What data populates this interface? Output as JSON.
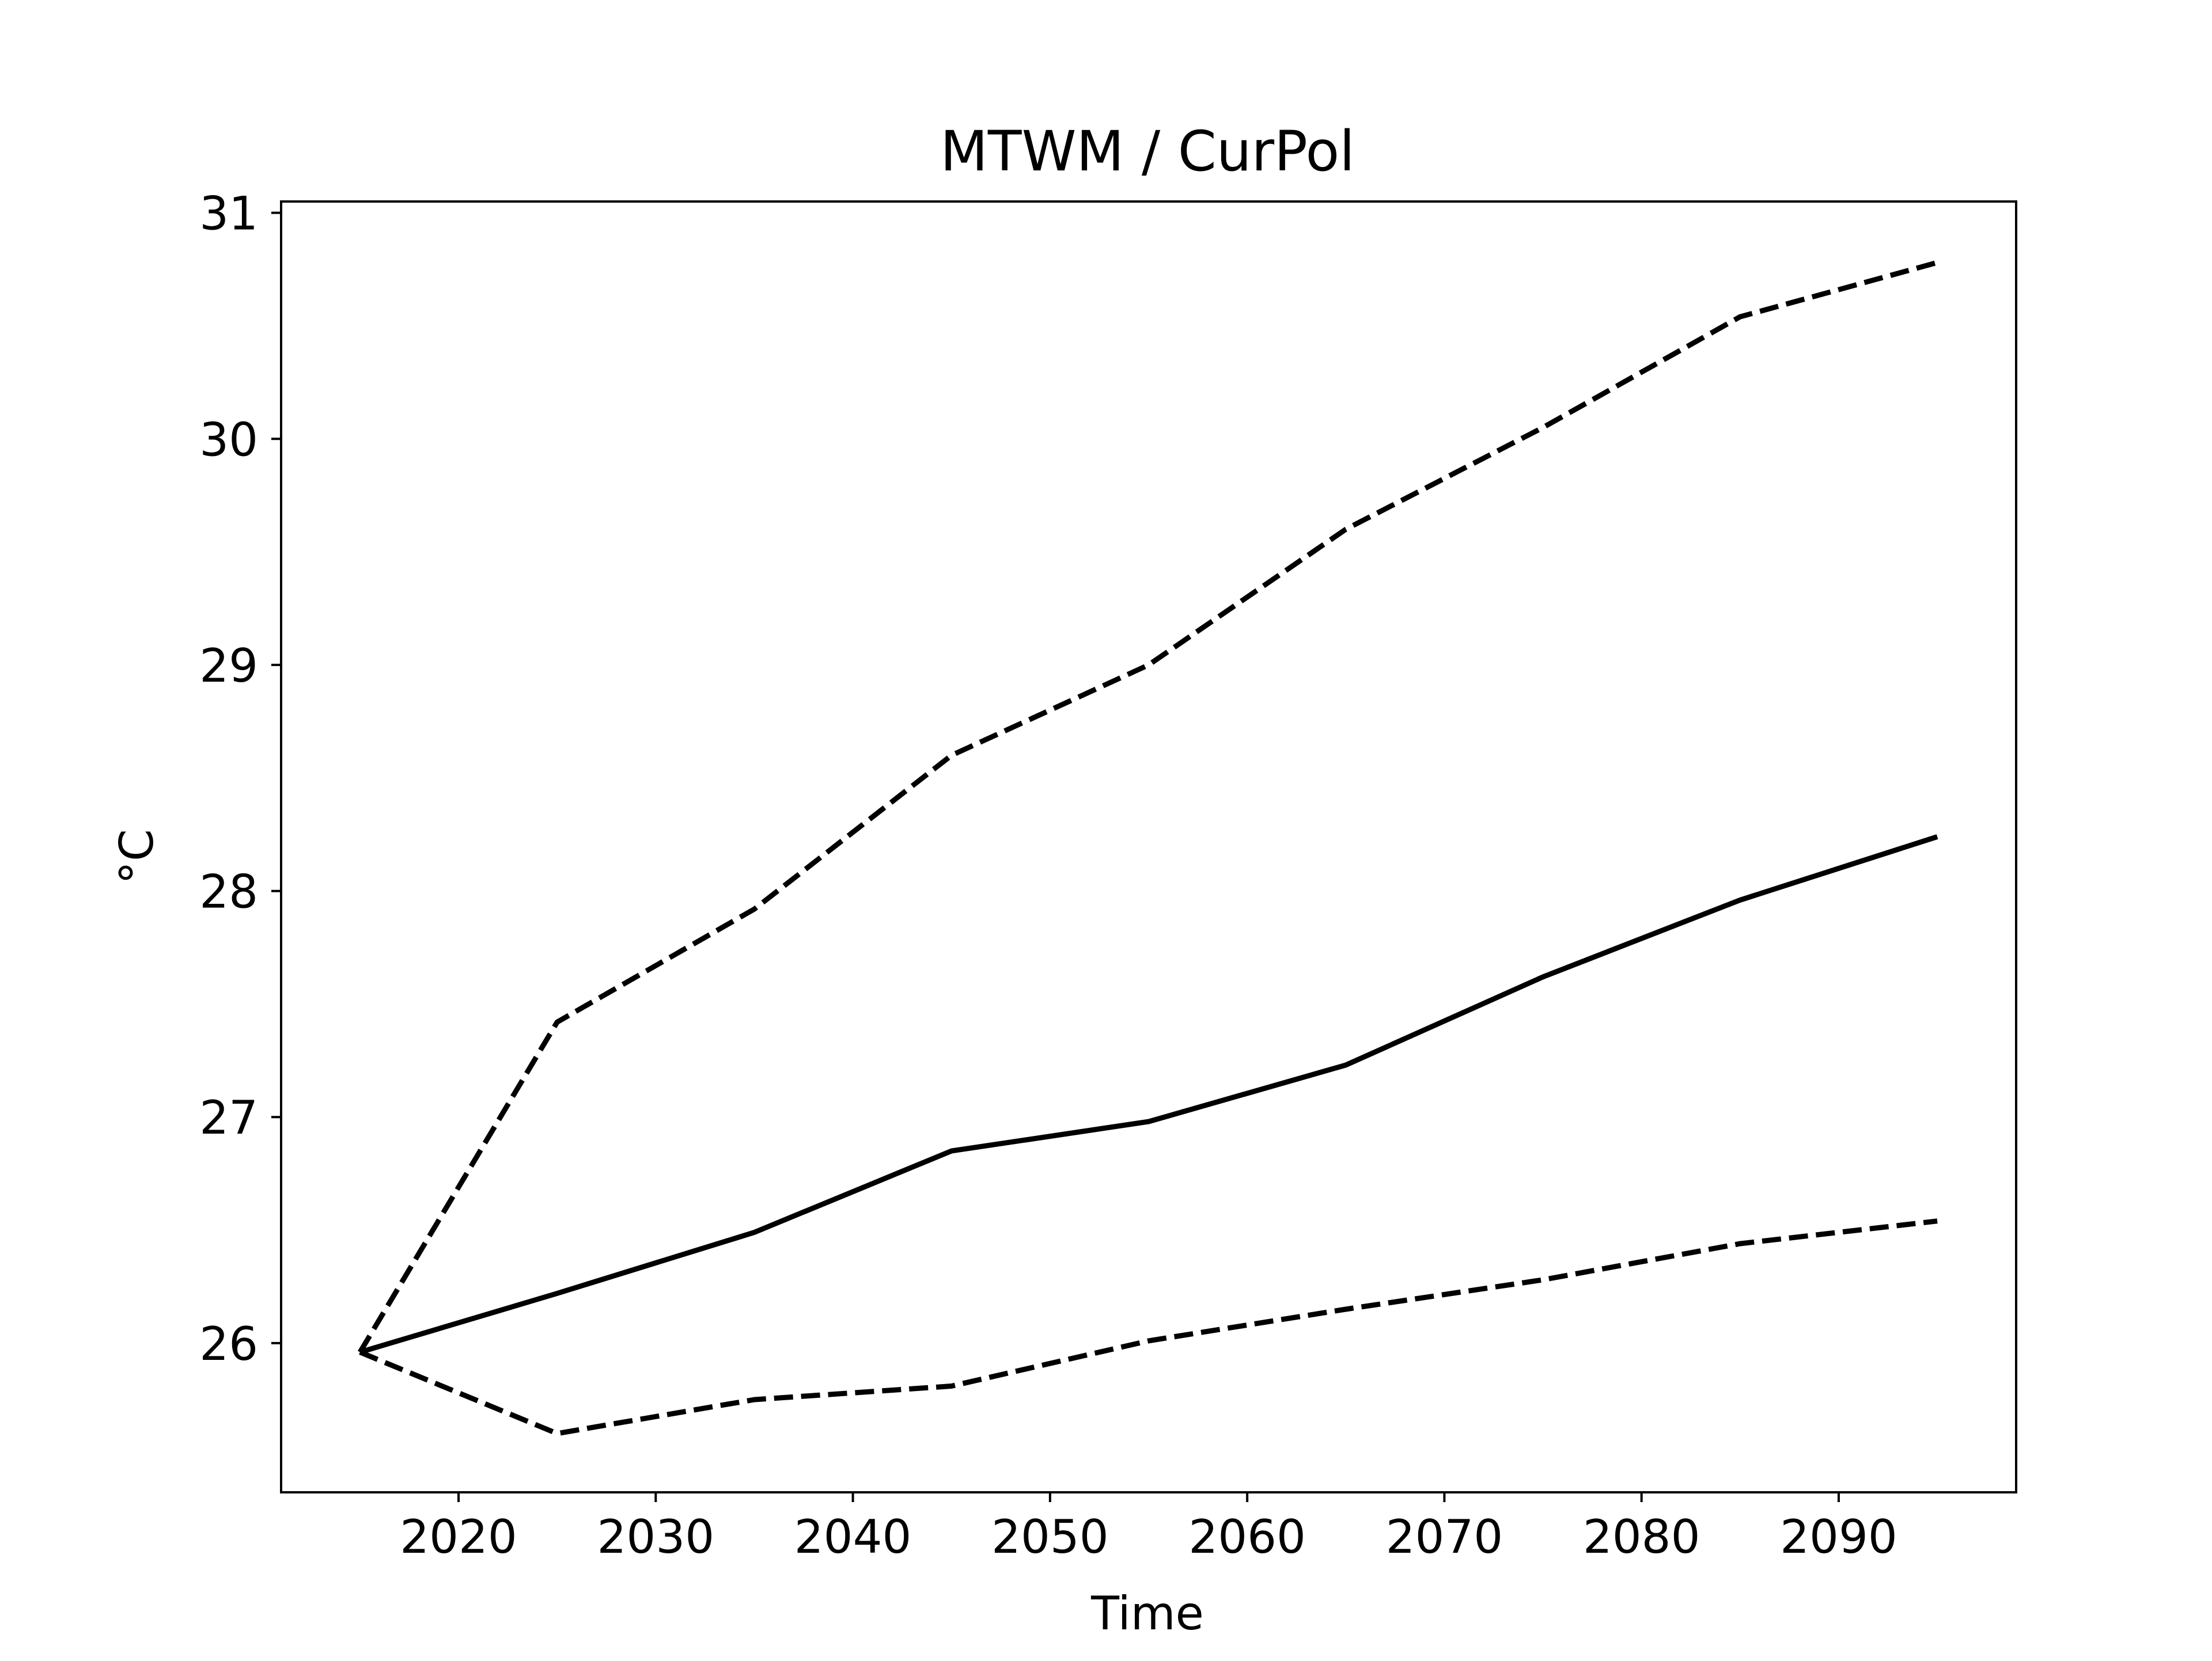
{
  "chart_data": {
    "type": "line",
    "title": "MTWM / CurPol",
    "xlabel": "Time",
    "ylabel": "°C",
    "x": [
      2015,
      2025,
      2035,
      2045,
      2055,
      2065,
      2075,
      2085,
      2095
    ],
    "xlim": [
      2011,
      2099
    ],
    "ylim": [
      25.34,
      31.05
    ],
    "xticks": [
      2020,
      2030,
      2040,
      2050,
      2060,
      2070,
      2080,
      2090
    ],
    "yticks": [
      26,
      27,
      28,
      29,
      30,
      31
    ],
    "grid": false,
    "legend": "none",
    "series": [
      {
        "style": "solid",
        "color": "#000000",
        "values": [
          25.96,
          26.22,
          26.49,
          26.85,
          26.98,
          27.23,
          27.62,
          27.96,
          28.24
        ]
      },
      {
        "style": "dashed",
        "color": "#000000",
        "values": [
          25.96,
          27.42,
          27.92,
          28.6,
          29.0,
          29.6,
          30.05,
          30.54,
          30.78
        ]
      },
      {
        "style": "dashed",
        "color": "#000000",
        "values": [
          25.96,
          25.6,
          25.75,
          25.81,
          26.01,
          26.15,
          26.28,
          26.44,
          26.54
        ]
      }
    ]
  }
}
